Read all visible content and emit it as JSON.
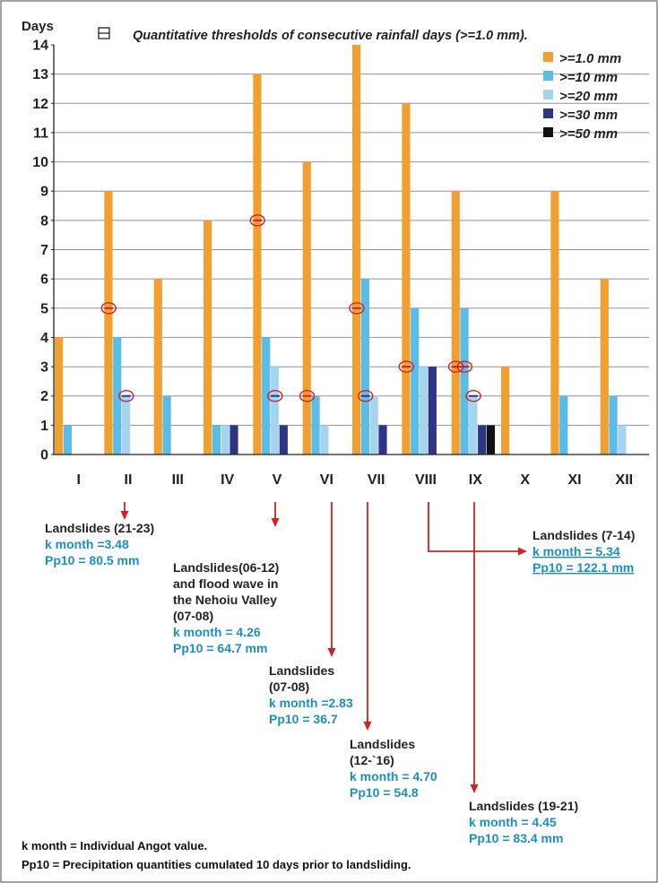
{
  "chart_data": {
    "type": "bar",
    "title": "Quantitative thresholds of consecutive rainfall days (>=1.0 mm).",
    "ylabel": "Days",
    "ylim": [
      0,
      14
    ],
    "yticks": [
      "0",
      "1",
      "2",
      "3",
      "4",
      "5",
      "6",
      "7",
      "8",
      "9",
      "10",
      "11",
      "12",
      "13",
      "14"
    ],
    "categories": [
      "I",
      "II",
      "III",
      "IV",
      "V",
      "VI",
      "VII",
      "VIII",
      "IX",
      "X",
      "XI",
      "XII"
    ],
    "legend_position": "top-right",
    "series": [
      {
        "name": ">=1.0 mm",
        "color": "#f0a030",
        "values": [
          4,
          9,
          6,
          8,
          13,
          10,
          14,
          12,
          9,
          3,
          9,
          6
        ]
      },
      {
        "name": ">=10 mm",
        "color": "#5bbde6",
        "values": [
          1,
          4,
          2,
          1,
          4,
          2,
          6,
          5,
          5,
          0,
          2,
          2
        ]
      },
      {
        "name": ">=20 mm",
        "color": "#a6d3ee",
        "values": [
          0,
          2,
          0,
          1,
          3,
          1,
          2,
          3,
          2,
          0,
          0,
          1
        ]
      },
      {
        "name": ">=30 mm",
        "color": "#2e3584",
        "values": [
          0,
          0,
          0,
          1,
          1,
          0,
          1,
          3,
          1,
          0,
          0,
          0
        ]
      },
      {
        "name": ">=50 mm",
        "color": "#111111",
        "values": [
          0,
          0,
          0,
          0,
          0,
          0,
          0,
          0,
          1,
          0,
          0,
          0
        ]
      }
    ],
    "markers": [
      {
        "category": "II",
        "series": 0,
        "value": 5,
        "type": "plus"
      },
      {
        "category": "II",
        "series": 2,
        "value": 2,
        "type": "minus"
      },
      {
        "category": "V",
        "series": 0,
        "value": 8,
        "type": "plus"
      },
      {
        "category": "V",
        "series": 2,
        "value": 2,
        "type": "minus"
      },
      {
        "category": "VI",
        "series": 0,
        "value": 2,
        "type": "plus"
      },
      {
        "category": "VII",
        "series": 0,
        "value": 5,
        "type": "plus"
      },
      {
        "category": "VII",
        "series": 1,
        "value": 2,
        "type": "minus"
      },
      {
        "category": "VIII",
        "series": 0,
        "value": 3,
        "type": "plus"
      },
      {
        "category": "IX",
        "series": 0,
        "value": 3,
        "type": "plus"
      },
      {
        "category": "IX",
        "series": 1,
        "value": 3,
        "type": "plus"
      },
      {
        "category": "IX",
        "series": 2,
        "value": 2,
        "type": "minus"
      }
    ],
    "annotations": [
      {
        "category": "II",
        "lines": [
          {
            "text": "Landslides (21-23)",
            "color": "#222222",
            "underline": false
          },
          {
            "text": "k month =3.48",
            "color": "#1a8fc4",
            "underline": false
          },
          {
            "text": "Pp10 = 80.5 mm",
            "color": "#1a8fc4",
            "underline": false
          }
        ]
      },
      {
        "category": "V",
        "lines": [
          {
            "text": "Landslides(06-12)",
            "color": "#222222",
            "underline": false
          },
          {
            "text": "and flood wave in",
            "color": "#222222",
            "underline": false
          },
          {
            "text": "the Nehoiu Valley",
            "color": "#222222",
            "underline": false
          },
          {
            "text": "(07-08)",
            "color": "#222222",
            "underline": false
          },
          {
            "text": "k month = 4.26",
            "color": "#1a8fc4",
            "underline": false
          },
          {
            "text": "Pp10 = 64.7 mm",
            "color": "#1a8fc4",
            "underline": false
          }
        ]
      },
      {
        "category": "VI",
        "lines": [
          {
            "text": "Landslides",
            "color": "#222222",
            "underline": false
          },
          {
            "text": "(07-08)",
            "color": "#222222",
            "underline": false
          },
          {
            "text": "k month =2.83",
            "color": "#1a8fc4",
            "underline": false
          },
          {
            "text": "Pp10 = 36.7",
            "color": "#1a8fc4",
            "underline": false
          }
        ]
      },
      {
        "category": "VII",
        "lines": [
          {
            "text": "Landslides",
            "color": "#222222",
            "underline": false
          },
          {
            "text": "(12-`16)",
            "color": "#222222",
            "underline": false
          },
          {
            "text": "k month = 4.70",
            "color": "#1a8fc4",
            "underline": false
          },
          {
            "text": "Pp10 = 54.8",
            "color": "#1a8fc4",
            "underline": false
          }
        ]
      },
      {
        "category": "VIII",
        "lines": [
          {
            "text": "Landslides (7-14)",
            "color": "#222222",
            "underline": false
          },
          {
            "text": "k month = 5.34",
            "color": "#1a8fc4",
            "underline": true
          },
          {
            "text": "Pp10 = 122.1 mm",
            "color": "#1a8fc4",
            "underline": true
          }
        ]
      },
      {
        "category": "IX",
        "lines": [
          {
            "text": "Landslides (19-21)",
            "color": "#222222",
            "underline": false
          },
          {
            "text": "k month = 4.45",
            "color": "#1a8fc4",
            "underline": false
          },
          {
            "text": "Pp10 = 83.4 mm",
            "color": "#1a8fc4",
            "underline": false
          }
        ]
      }
    ],
    "footnotes": [
      "k month = Individual Angot value.",
      "Pp10 = Precipitation quantities cumulated 10 days prior to landsliding."
    ]
  }
}
